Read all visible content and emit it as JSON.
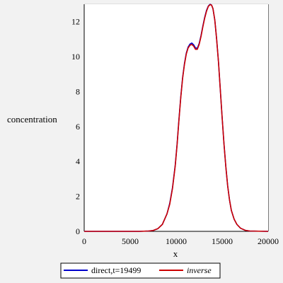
{
  "chart_data": {
    "type": "line",
    "xlabel": "x",
    "ylabel": "concentration",
    "xlim": [
      0,
      20000
    ],
    "ylim": [
      0,
      13
    ],
    "xticks": [
      0,
      5000,
      10000,
      15000,
      20000
    ],
    "yticks": [
      0,
      2,
      4,
      6,
      8,
      10,
      12
    ],
    "grid": true,
    "legend_position": "bottom",
    "series": [
      {
        "name": "direct,t=19499",
        "color": "#0000cc",
        "x": [
          0,
          6000,
          7000,
          7500,
          8000,
          8500,
          9000,
          9300,
          9600,
          9900,
          10100,
          10300,
          10500,
          10700,
          10900,
          11100,
          11300,
          11500,
          11700,
          11900,
          12100,
          12300,
          12500,
          12700,
          12900,
          13100,
          13300,
          13500,
          13700,
          13850,
          14000,
          14200,
          14400,
          14600,
          14800,
          15000,
          15200,
          15400,
          15600,
          15800,
          16000,
          16300,
          16600,
          17000,
          17500,
          18000,
          20000
        ],
        "y": [
          0,
          0,
          0.02,
          0.05,
          0.15,
          0.4,
          1.0,
          1.6,
          2.5,
          3.8,
          5.0,
          6.4,
          7.7,
          8.8,
          9.6,
          10.2,
          10.55,
          10.72,
          10.78,
          10.68,
          10.5,
          10.48,
          10.75,
          11.2,
          11.75,
          12.25,
          12.65,
          12.9,
          13.0,
          12.95,
          12.75,
          12.1,
          11.0,
          9.7,
          8.1,
          6.5,
          5.0,
          3.7,
          2.6,
          1.8,
          1.2,
          0.7,
          0.4,
          0.18,
          0.06,
          0.02,
          0
        ]
      },
      {
        "name": "inverse",
        "color": "#cc0000",
        "x": [
          0,
          6000,
          7000,
          7500,
          8000,
          8500,
          9000,
          9300,
          9600,
          9900,
          10100,
          10300,
          10500,
          10700,
          10900,
          11100,
          11300,
          11500,
          11700,
          11900,
          12100,
          12300,
          12500,
          12700,
          12900,
          13100,
          13300,
          13500,
          13700,
          13850,
          14000,
          14200,
          14400,
          14600,
          14800,
          15000,
          15200,
          15400,
          15600,
          15800,
          16000,
          16300,
          16600,
          17000,
          17500,
          18000,
          20000
        ],
        "y": [
          0,
          0,
          0.02,
          0.05,
          0.15,
          0.4,
          1.0,
          1.55,
          2.45,
          3.75,
          4.95,
          6.35,
          7.65,
          8.75,
          9.55,
          10.15,
          10.5,
          10.65,
          10.7,
          10.6,
          10.42,
          10.42,
          10.7,
          11.15,
          11.7,
          12.2,
          12.6,
          12.88,
          12.98,
          12.95,
          12.75,
          12.1,
          11.0,
          9.7,
          8.1,
          6.5,
          5.0,
          3.7,
          2.6,
          1.8,
          1.2,
          0.7,
          0.4,
          0.18,
          0.06,
          0.02,
          0
        ]
      }
    ]
  }
}
